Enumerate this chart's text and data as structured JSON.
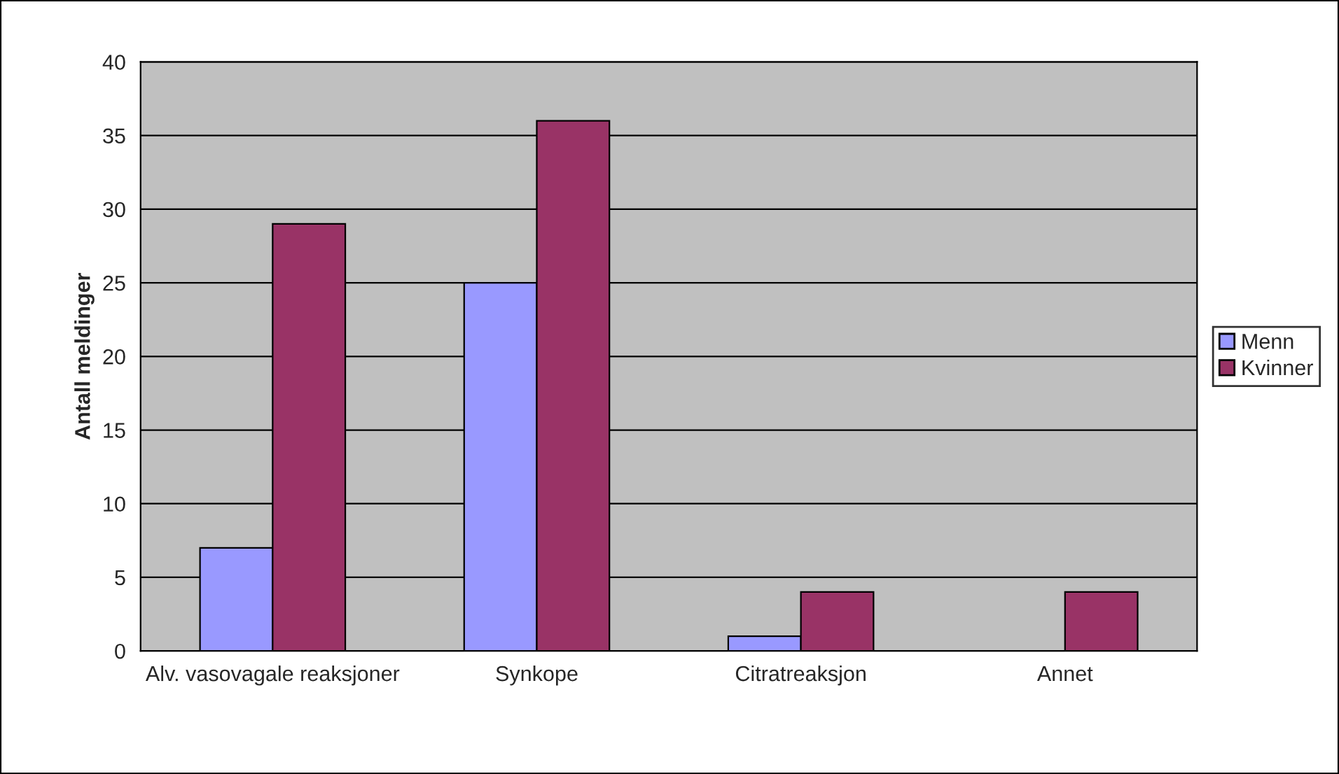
{
  "chart_data": {
    "type": "bar",
    "ylabel": "Antall meldinger",
    "categories": [
      "Alv. vasovagale reaksjoner",
      "Synkope",
      "Citratreaksjon",
      "Annet"
    ],
    "series": [
      {
        "name": "Menn",
        "color": "#9999ff",
        "values": [
          7,
          25,
          1,
          0
        ]
      },
      {
        "name": "Kvinner",
        "color": "#993366",
        "values": [
          29,
          36,
          4,
          4
        ]
      }
    ],
    "ylim": [
      0,
      40
    ],
    "yticks": [
      0,
      5,
      10,
      15,
      20,
      25,
      30,
      35,
      40
    ],
    "grid": "y",
    "legend": "right"
  }
}
